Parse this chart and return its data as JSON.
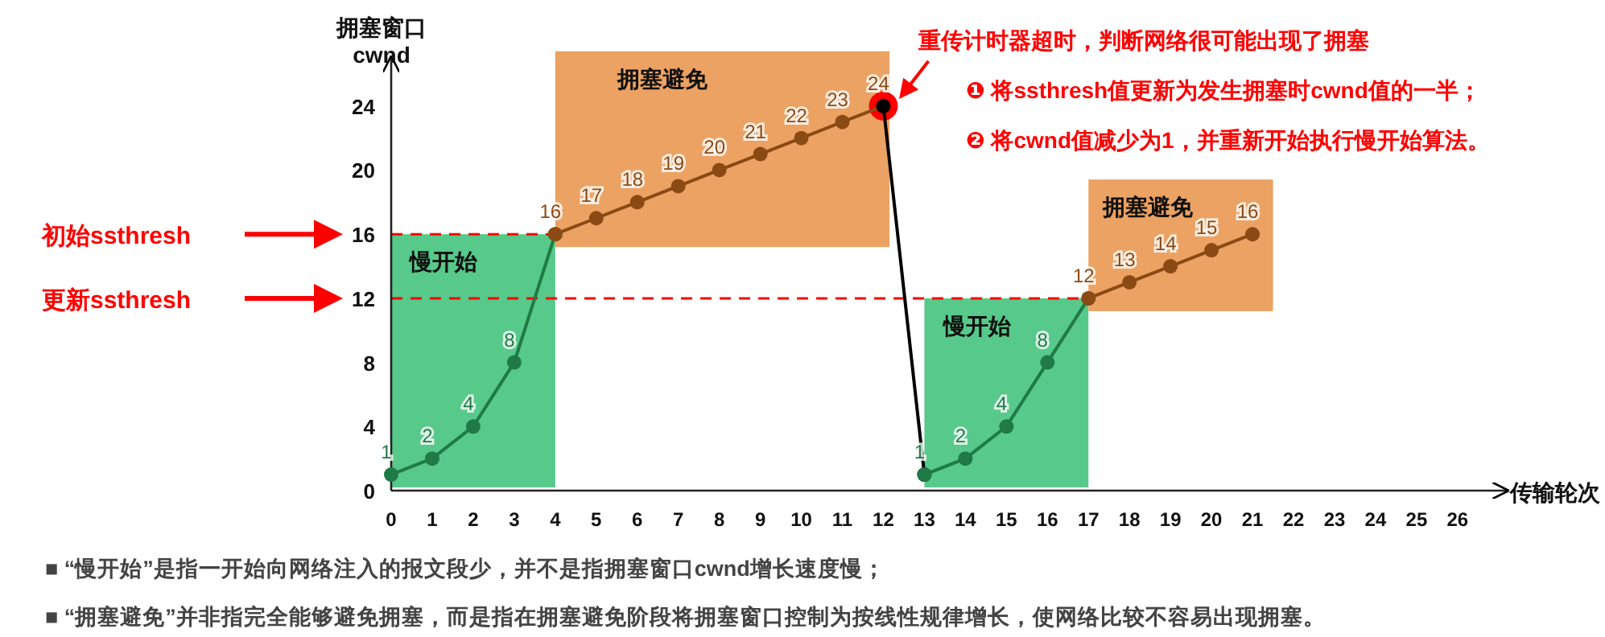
{
  "chart_data": {
    "type": "line",
    "xlabel": "传输轮次",
    "ylabel": "拥塞窗口\ncwnd",
    "xlim": [
      0,
      27.2
    ],
    "ylim": [
      0,
      27
    ],
    "xticks": [
      0,
      1,
      2,
      3,
      4,
      5,
      6,
      7,
      8,
      9,
      10,
      11,
      12,
      13,
      14,
      15,
      16,
      17,
      18,
      19,
      20,
      21,
      22,
      23,
      24,
      25,
      26
    ],
    "yticks": [
      0,
      4,
      8,
      12,
      16,
      20,
      24
    ],
    "grid": false,
    "marker": "circle",
    "line_style": "solid",
    "series": [
      {
        "x": [
          0,
          1,
          2,
          3,
          4
        ],
        "values": [
          1,
          2,
          4,
          8,
          16
        ],
        "color": "#1f7a45",
        "value_labels": [
          "1",
          "2",
          "4",
          "8",
          null
        ]
      },
      {
        "x": [
          4,
          5,
          6,
          7,
          8,
          9,
          10,
          11,
          12
        ],
        "values": [
          16,
          17,
          18,
          19,
          20,
          21,
          22,
          23,
          24
        ],
        "color": "#8b4a14",
        "value_labels": [
          "16",
          "17",
          "18",
          "19",
          "20",
          "21",
          "22",
          "23",
          "24"
        ]
      },
      {
        "x": [
          12,
          13
        ],
        "values": [
          24,
          1
        ],
        "color": "#000000",
        "value_labels": [
          null,
          null
        ]
      },
      {
        "x": [
          13,
          14,
          15,
          16,
          17
        ],
        "values": [
          1,
          2,
          4,
          8,
          12
        ],
        "color": "#1f7a45",
        "value_labels": [
          "1",
          "2",
          "4",
          "8",
          null
        ]
      },
      {
        "x": [
          17,
          18,
          19,
          20,
          21
        ],
        "values": [
          12,
          13,
          14,
          15,
          16
        ],
        "color": "#8b4a14",
        "value_labels": [
          "12",
          "13",
          "14",
          "15",
          "16"
        ]
      }
    ],
    "bands": [
      {
        "axis": "x",
        "from": 0,
        "to": 4,
        "label": "慢开始",
        "color": "#57c98a"
      },
      {
        "axis": "x",
        "from": 4,
        "to": 12.15,
        "label": "拥塞避免",
        "color": "#eba263"
      },
      {
        "axis": "x",
        "from": 13,
        "to": 17,
        "label": "慢开始",
        "color": "#57c98a"
      },
      {
        "axis": "x",
        "from": 17,
        "to": 21.5,
        "label": "拥塞避免",
        "color": "#eba263"
      }
    ],
    "ref_lines": [
      {
        "axis": "y",
        "value": 16,
        "label": "初始ssthresh",
        "color": "#ff0000",
        "line_style": "dashed"
      },
      {
        "axis": "y",
        "value": 12,
        "label": "更新ssthresh",
        "color": "#ff0000",
        "line_style": "dashed"
      }
    ],
    "annotations": [
      {
        "text": "重传计时器超时，判断网络很可能出现了拥塞",
        "x": 12,
        "y": 24
      },
      "❶ 将ssthresh值更新为发生拥塞时cwnd值的一半；",
      "❷ 将cwnd值减少为1，并重新开始执行慢开始算法。",
      "■ “慢开始”是指一开始向网络注入的报文段少，并不是指拥塞窗口cwnd增长速度慢；",
      "■ “拥塞避免”并非指完全能够避免拥塞，而是指在拥塞避免阶段将拥塞窗口控制为按线性规律增长，使网络比较不容易出现拥塞。"
    ]
  }
}
